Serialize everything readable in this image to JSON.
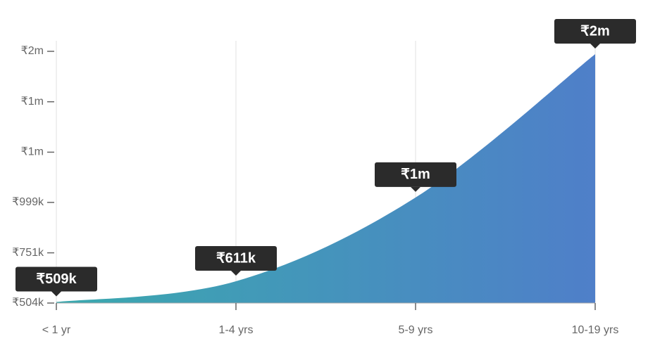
{
  "chart_data": {
    "type": "area",
    "categories": [
      "< 1 yr",
      "1-4 yrs",
      "5-9 yrs",
      "10-19 yrs"
    ],
    "values": [
      509000,
      611000,
      1023000,
      1728000
    ],
    "value_labels": [
      "₹509k",
      "₹611k",
      "₹1m",
      "₹2m"
    ],
    "colors": [
      "#3aa9ae",
      "#4f7fc9"
    ],
    "ylim": [
      504000,
      1742000
    ],
    "yticks": [
      {
        "value": 504000,
        "label": "₹504k"
      },
      {
        "value": 751000,
        "label": "₹751k"
      },
      {
        "value": 999000,
        "label": "₹999k"
      },
      {
        "value": 1246000,
        "label": "₹1m"
      },
      {
        "value": 1494000,
        "label": "₹1m"
      },
      {
        "value": 1742000,
        "label": "₹2m"
      }
    ],
    "grid": true
  }
}
